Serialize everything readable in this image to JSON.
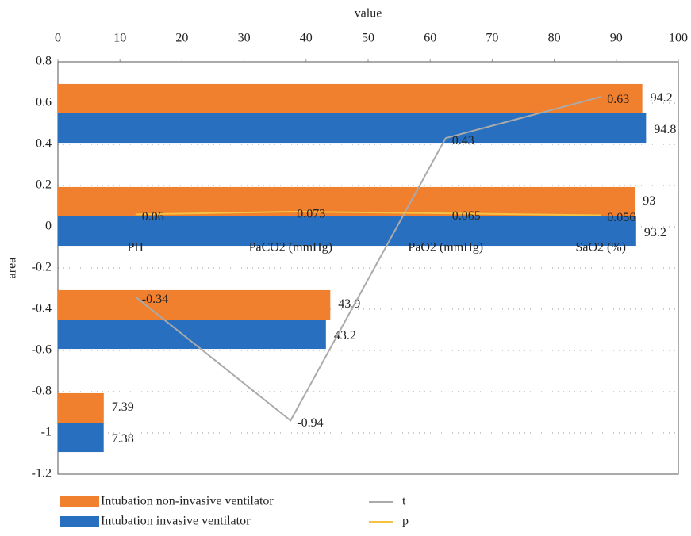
{
  "chart_data": {
    "type": "bar_line",
    "x_label": "value",
    "y_label": "area",
    "categories": [
      "PH",
      "PaCO2 (mmHg)",
      "PaO2 (mmHg)",
      "SaO2 (%)"
    ],
    "xlim": [
      0,
      100
    ],
    "xticks": [
      0,
      10,
      20,
      30,
      40,
      50,
      60,
      70,
      80,
      90,
      100
    ],
    "ylim": [
      -1.2,
      0.8
    ],
    "yticks": [
      -1.2,
      -1,
      -0.8,
      -0.6,
      -0.4,
      -0.2,
      0,
      0.2,
      0.4,
      0.6,
      0.8
    ],
    "grid": true,
    "series": [
      {
        "name": "Intubation non-invasive ventilator",
        "type": "bar",
        "axis": "x",
        "color": "#f07f2e",
        "values": [
          7.39,
          43.9,
          93,
          94.2
        ]
      },
      {
        "name": "Intubation invasive ventilator",
        "type": "bar",
        "axis": "x",
        "color": "#2870bf",
        "values": [
          7.38,
          43.2,
          93.2,
          94.8
        ]
      },
      {
        "name": "t",
        "type": "line",
        "axis": "y",
        "color": "#aaaaaa",
        "values": [
          -0.34,
          -0.94,
          0.43,
          0.63
        ]
      },
      {
        "name": "p",
        "type": "line",
        "axis": "y",
        "color": "#f5c242",
        "values": [
          0.06,
          0.073,
          0.065,
          0.056
        ]
      }
    ]
  }
}
